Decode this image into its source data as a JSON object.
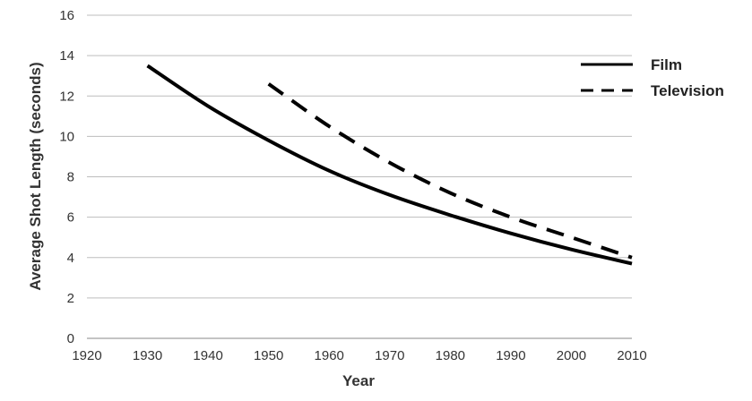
{
  "chart_data": {
    "type": "line",
    "title": "",
    "xlabel": "Year",
    "ylabel": "Average Shot Length (seconds)",
    "xlim": [
      1920,
      2010
    ],
    "ylim": [
      0,
      16
    ],
    "x_ticks": [
      1920,
      1930,
      1940,
      1950,
      1960,
      1970,
      1980,
      1990,
      2000,
      2010
    ],
    "y_ticks": [
      0,
      2,
      4,
      6,
      8,
      10,
      12,
      14,
      16
    ],
    "grid": "horizontal",
    "legend_position": "top-right",
    "series": [
      {
        "name": "Film",
        "style": "solid",
        "color": "#000000",
        "x": [
          1930,
          1940,
          1950,
          1960,
          1970,
          1980,
          1990,
          2000,
          2010
        ],
        "y": [
          13.5,
          11.5,
          9.8,
          8.3,
          7.1,
          6.1,
          5.2,
          4.4,
          3.7
        ]
      },
      {
        "name": "Television",
        "style": "dashed",
        "color": "#000000",
        "x": [
          1950,
          1960,
          1970,
          1980,
          1990,
          2000,
          2010
        ],
        "y": [
          12.6,
          10.5,
          8.7,
          7.2,
          6.0,
          5.0,
          4.0
        ]
      }
    ]
  }
}
